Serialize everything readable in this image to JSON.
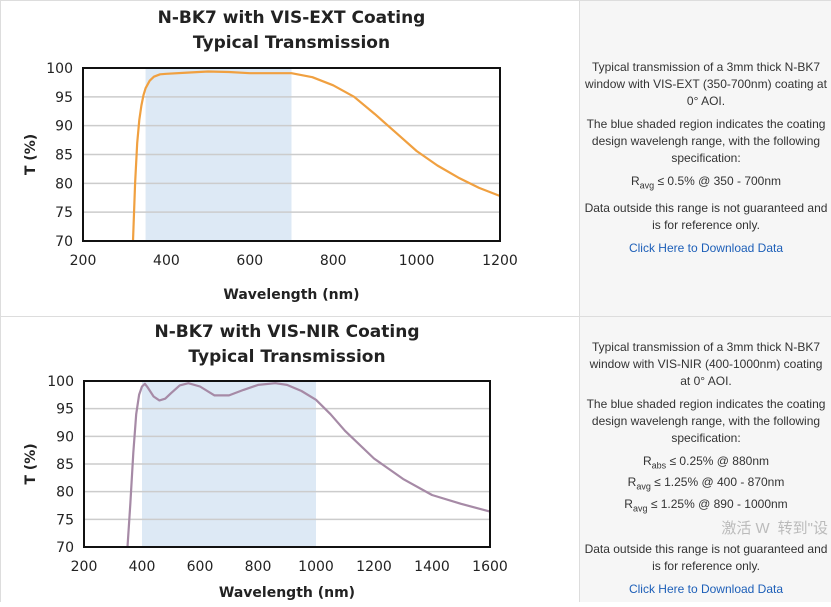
{
  "chart_data": [
    {
      "type": "line",
      "title": [
        "N-BK7 with VIS-EXT Coating",
        "Typical Transmission"
      ],
      "xlabel": "Wavelength (nm)",
      "ylabel": "T (%)",
      "xlim": [
        200,
        1200
      ],
      "ylim": [
        70,
        100
      ],
      "xticks": [
        200,
        400,
        600,
        800,
        1000,
        1200
      ],
      "yticks": [
        70,
        75,
        80,
        85,
        90,
        95,
        100
      ],
      "grid": true,
      "shaded_range": [
        350,
        700
      ],
      "shade_color": "#dde9f5",
      "line_color": "#f0a040",
      "x": [
        320,
        325,
        330,
        335,
        340,
        345,
        350,
        360,
        370,
        385,
        400,
        450,
        500,
        550,
        600,
        650,
        700,
        750,
        800,
        850,
        900,
        950,
        1000,
        1050,
        1100,
        1150,
        1200
      ],
      "y": [
        70,
        80,
        87,
        91,
        93.5,
        95.3,
        96.5,
        97.8,
        98.5,
        98.9,
        99.0,
        99.2,
        99.4,
        99.3,
        99.1,
        99.1,
        99.1,
        98.4,
        97.0,
        95.0,
        92.0,
        88.8,
        85.6,
        83.1,
        81.0,
        79.2,
        77.8
      ]
    },
    {
      "type": "line",
      "title": [
        "N-BK7 with VIS-NIR Coating",
        "Typical Transmission"
      ],
      "xlabel": "Wavelength (nm)",
      "ylabel": "T (%)",
      "xlim": [
        200,
        1600
      ],
      "ylim": [
        70,
        100
      ],
      "xticks": [
        200,
        400,
        600,
        800,
        1000,
        1200,
        1400,
        1600
      ],
      "yticks": [
        70,
        75,
        80,
        85,
        90,
        95,
        100
      ],
      "grid": true,
      "shaded_range": [
        400,
        1000
      ],
      "shade_color": "#dde9f5",
      "line_color": "#a68aa6",
      "x": [
        350,
        360,
        370,
        380,
        390,
        400,
        410,
        420,
        440,
        460,
        480,
        500,
        530,
        560,
        600,
        650,
        700,
        750,
        800,
        860,
        900,
        950,
        1000,
        1050,
        1100,
        1200,
        1300,
        1400,
        1500,
        1600
      ],
      "y": [
        70,
        78,
        87,
        94,
        97.5,
        99.0,
        99.5,
        98.8,
        97.2,
        96.5,
        96.8,
        97.8,
        99.2,
        99.6,
        99.0,
        97.4,
        97.4,
        98.4,
        99.3,
        99.6,
        99.3,
        98.2,
        96.6,
        94.0,
        91.0,
        86.0,
        82.3,
        79.4,
        77.8,
        76.4
      ]
    }
  ],
  "panels": [
    {
      "desc": "Typical transmission of a 3mm thick N-BK7 window with VIS-EXT (350-700nm) coating at 0° AOI.",
      "shaded": "The blue shaded region indicates the coating design wavelengh range, with the following specification:",
      "specs": [
        {
          "sym": "R",
          "sub": "avg",
          "text": "≤ 0.5% @ 350 - 700nm"
        }
      ],
      "note": "Data outside this range is not guaranteed and is for reference only.",
      "link": "Click Here to Download Data"
    },
    {
      "desc": "Typical transmission of a 3mm thick N-BK7 window with VIS-NIR (400-1000nm) coating at 0° AOI.",
      "shaded": "The blue shaded region indicates the coating design wavelengh range, with the following specification:",
      "specs": [
        {
          "sym": "R",
          "sub": "abs",
          "text": "≤ 0.25% @ 880nm"
        },
        {
          "sym": "R",
          "sub": "avg",
          "text": "≤ 1.25% @ 400 - 870nm"
        },
        {
          "sym": "R",
          "sub": "avg",
          "text": "≤ 1.25% @ 890 - 1000nm"
        }
      ],
      "note": "Data outside this range is not guaranteed and is for reference only.",
      "link": "Click Here to Download Data"
    }
  ],
  "watermark": [
    "激活 W",
    "转到\"设"
  ]
}
